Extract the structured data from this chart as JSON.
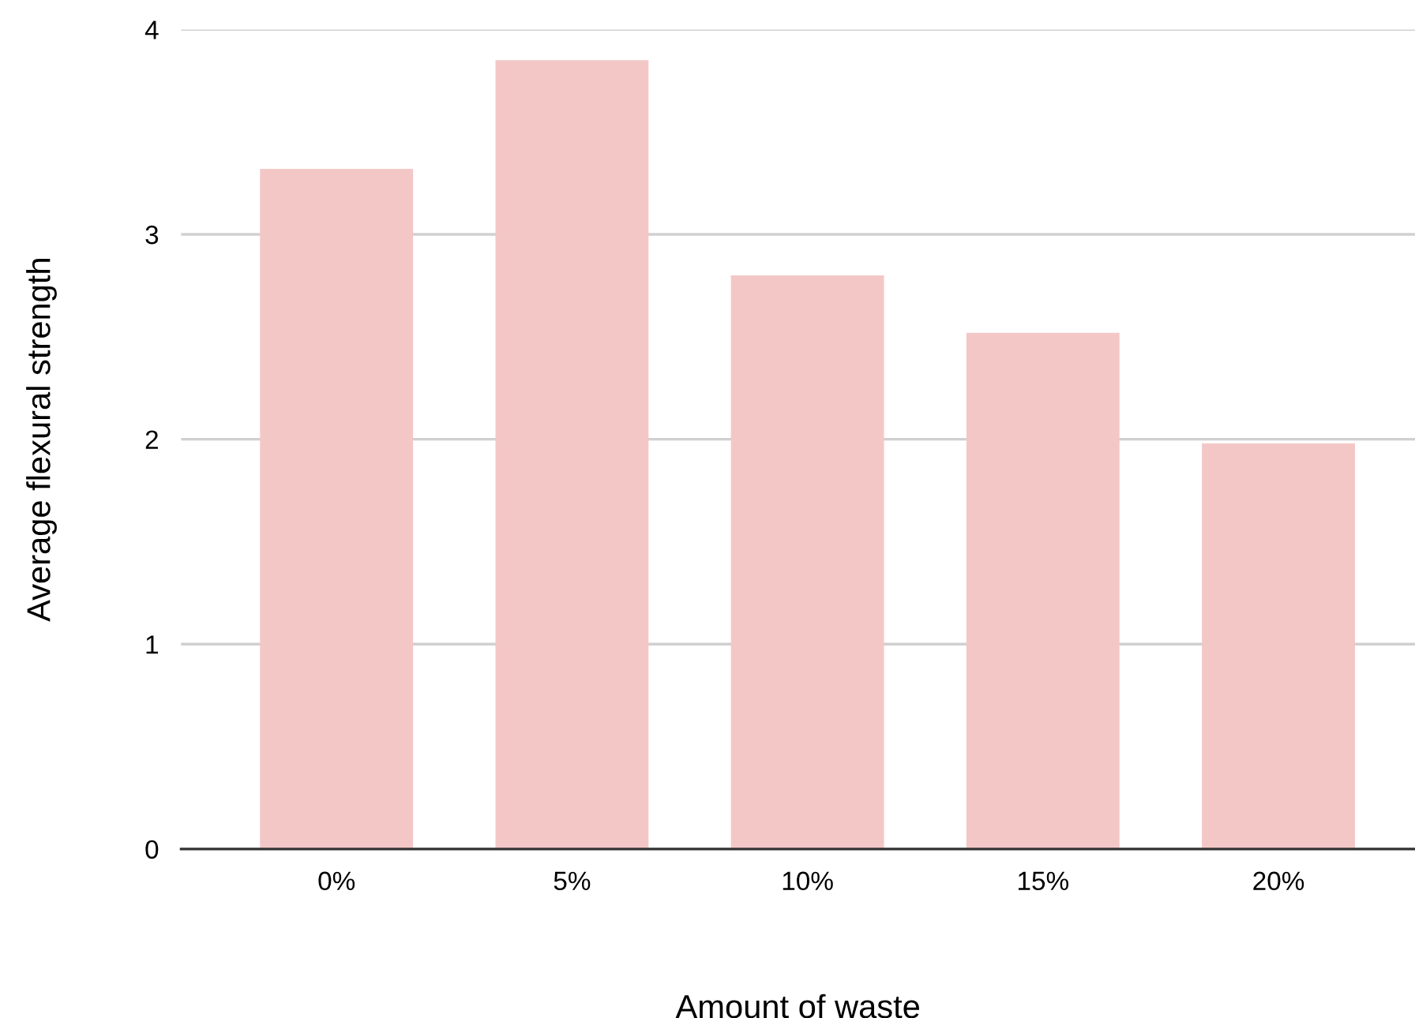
{
  "chart_data": {
    "type": "bar",
    "xlabel": "Amount of waste",
    "ylabel": "Average flexural strength",
    "categories": [
      "0%",
      "5%",
      "10%",
      "15%",
      "20%"
    ],
    "values": [
      3.32,
      3.85,
      2.8,
      2.52,
      1.98
    ],
    "color": "#f4c7c7",
    "ylim": [
      0,
      4
    ],
    "yticks": [
      0,
      1,
      2,
      3,
      4
    ],
    "grid": "y",
    "legend": false
  }
}
